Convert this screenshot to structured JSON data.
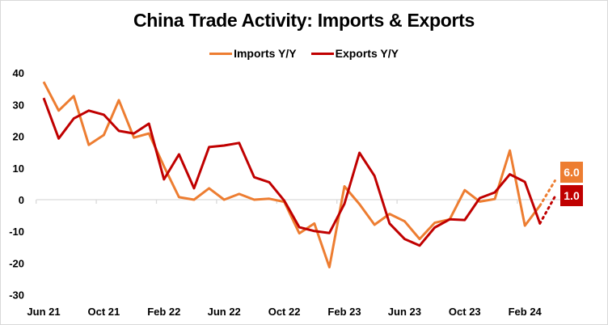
{
  "chart_data": {
    "type": "line",
    "title": "China Trade Activity: Imports & Exports",
    "xlabel": "",
    "ylabel": "",
    "ylim": [
      -30,
      40
    ],
    "yticks": [
      40,
      30,
      20,
      10,
      0,
      -10,
      -20,
      -30
    ],
    "grid": false,
    "legend_position": "top",
    "x": [
      "Jun 21",
      "Jul 21",
      "Aug 21",
      "Sep 21",
      "Oct 21",
      "Nov 21",
      "Dec 21",
      "Jan 22",
      "Feb 22",
      "Mar 22",
      "Apr 22",
      "May 22",
      "Jun 22",
      "Jul 22",
      "Aug 22",
      "Sep 22",
      "Oct 22",
      "Nov 22",
      "Dec 22",
      "Jan 23",
      "Feb 23",
      "Mar 23",
      "Apr 23",
      "May 23",
      "Jun 23",
      "Jul 23",
      "Aug 23",
      "Sep 23",
      "Oct 23",
      "Nov 23",
      "Dec 23",
      "Jan 24",
      "Feb 24",
      "Mar 24"
    ],
    "xtick_labels": [
      "Jun 21",
      "Oct 21",
      "Feb 22",
      "Jun 22",
      "Oct 22",
      "Feb 23",
      "Jun 23",
      "Oct 23",
      "Feb 24"
    ],
    "series": [
      {
        "name": "Imports Y/Y",
        "color": "#ED7D31",
        "values": [
          37.2,
          28.1,
          32.7,
          17.3,
          20.4,
          31.4,
          19.6,
          20.9,
          10.5,
          0.8,
          0.0,
          3.6,
          0.0,
          1.8,
          0.0,
          0.3,
          -0.7,
          -10.6,
          -7.5,
          -21.3,
          4.2,
          -1.4,
          -7.9,
          -4.5,
          -6.8,
          -12.4,
          -7.3,
          -6.2,
          3.0,
          -0.6,
          0.2,
          15.5,
          -8.2,
          -1.9
        ],
        "forecast": {
          "x": "Apr 24",
          "value": 6.0,
          "label": "6.0"
        }
      },
      {
        "name": "Exports Y/Y",
        "color": "#C00000",
        "values": [
          32.1,
          19.3,
          25.6,
          28.1,
          26.8,
          21.7,
          20.9,
          24.0,
          6.4,
          14.3,
          3.6,
          16.6,
          17.1,
          17.9,
          7.1,
          5.5,
          -0.3,
          -8.7,
          -9.9,
          -10.5,
          -1.3,
          14.8,
          7.5,
          -7.5,
          -12.4,
          -14.5,
          -8.8,
          -6.2,
          -6.4,
          0.5,
          2.3,
          8.0,
          5.6,
          -7.5
        ],
        "forecast": {
          "x": "Apr 24",
          "value": 1.0,
          "label": "1.0"
        }
      }
    ]
  },
  "legend": {
    "imports_label": "Imports Y/Y",
    "exports_label": "Exports Y/Y"
  },
  "labels": {
    "imports_forecast": "6.0",
    "exports_forecast": "1.0"
  }
}
